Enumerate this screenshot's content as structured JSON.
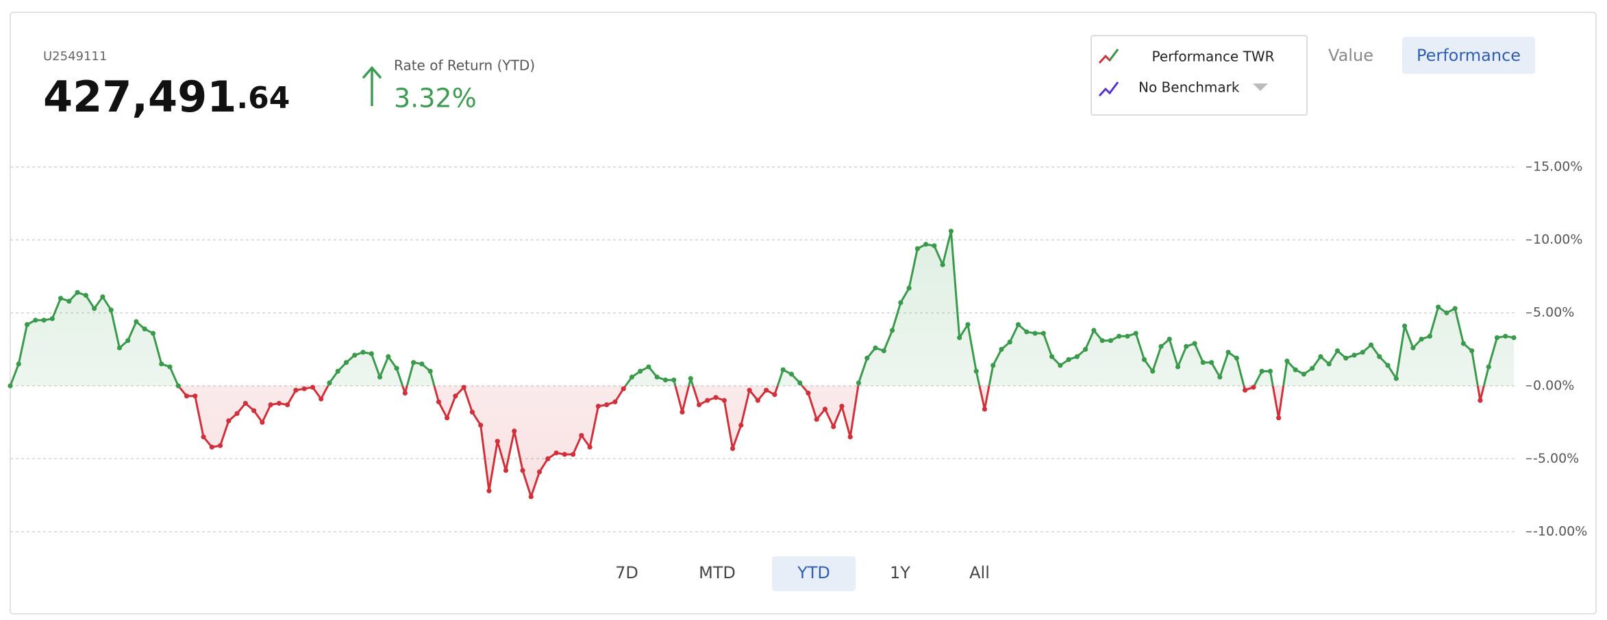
{
  "header": {
    "account": "U2549111",
    "value_main": "427,491",
    "value_cents": ".64",
    "return_label": "Rate of Return (YTD)",
    "return_value": "3.32%"
  },
  "legend": {
    "primary": "Performance TWR",
    "benchmark": "No Benchmark"
  },
  "view_tabs": [
    "Value",
    "Performance"
  ],
  "active_view": 1,
  "range_tabs": [
    "7D",
    "MTD",
    "YTD",
    "1Y",
    "All"
  ],
  "active_range": 2,
  "chart_data": {
    "type": "line",
    "values": [
      0,
      1.5,
      4.2,
      4.5,
      4.5,
      4.6,
      6.0,
      5.8,
      6.4,
      6.2,
      5.3,
      6.1,
      5.2,
      2.6,
      3.1,
      4.4,
      3.9,
      3.6,
      1.5,
      1.3,
      0.0,
      -0.7,
      -0.7,
      -3.5,
      -4.2,
      -4.1,
      -2.4,
      -1.9,
      -1.2,
      -1.7,
      -2.5,
      -1.3,
      -1.2,
      -1.3,
      -0.3,
      -0.2,
      -0.1,
      -0.9,
      0.2,
      1.0,
      1.6,
      2.1,
      2.3,
      2.2,
      0.6,
      2.0,
      1.2,
      -0.5,
      1.6,
      1.5,
      1.0,
      -1.1,
      -2.2,
      -0.7,
      -0.1,
      -1.8,
      -2.7,
      -7.2,
      -3.8,
      -5.8,
      -3.1,
      -5.8,
      -7.6,
      -5.9,
      -5.0,
      -4.6,
      -4.7,
      -4.7,
      -3.4,
      -4.2,
      -1.4,
      -1.3,
      -1.1,
      -0.2,
      0.6,
      1.0,
      1.3,
      0.6,
      0.4,
      0.4,
      -1.8,
      0.5,
      -1.3,
      -1.0,
      -0.8,
      -1.0,
      -4.3,
      -2.7,
      -0.3,
      -1.0,
      -0.3,
      -0.6,
      1.1,
      0.8,
      0.2,
      -0.5,
      -2.3,
      -1.6,
      -2.8,
      -1.4,
      -3.5,
      0.2,
      1.9,
      2.6,
      2.4,
      3.8,
      5.7,
      6.7,
      9.4,
      9.7,
      9.6,
      8.3,
      10.6,
      3.3,
      4.2,
      1.0,
      -1.6,
      1.4,
      2.5,
      3.0,
      4.2,
      3.7,
      3.6,
      3.6,
      2.0,
      1.4,
      1.8,
      2.0,
      2.5,
      3.8,
      3.1,
      3.1,
      3.4,
      3.4,
      3.6,
      1.8,
      1.0,
      2.7,
      3.2,
      1.3,
      2.7,
      2.9,
      1.6,
      1.6,
      0.6,
      2.3,
      1.9,
      -0.3,
      -0.1,
      1.0,
      1.0,
      -2.2,
      1.7,
      1.1,
      0.8,
      1.2,
      2.0,
      1.5,
      2.4,
      1.9,
      2.1,
      2.3,
      2.8,
      2.0,
      1.4,
      0.5,
      4.1,
      2.6,
      3.2,
      3.4,
      5.4,
      5.0,
      5.3,
      2.9,
      2.4,
      -1.0,
      1.3,
      3.3,
      3.4,
      3.3
    ],
    "ylim": [
      -10,
      15
    ],
    "yticks": [
      {
        "value": 15,
        "label": "15.00%"
      },
      {
        "value": 10,
        "label": "10.00%"
      },
      {
        "value": 5,
        "label": "5.00%"
      },
      {
        "value": 0,
        "label": "0.00%"
      },
      {
        "value": -5,
        "label": "-5.00%"
      },
      {
        "value": -10,
        "label": "-10.00%"
      }
    ],
    "grid": true,
    "color_positive": "#3a9a4c",
    "color_negative": "#d0303a"
  }
}
